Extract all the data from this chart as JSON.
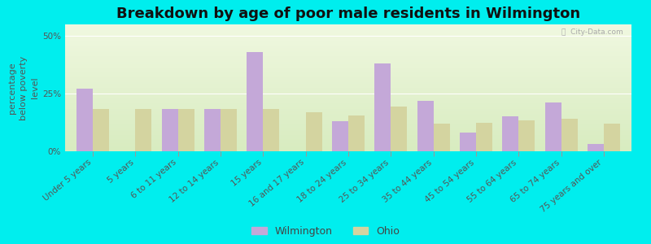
{
  "title": "Breakdown by age of poor male residents in Wilmington",
  "ylabel": "percentage\nbelow poverty\nlevel",
  "categories": [
    "Under 5 years",
    "5 years",
    "6 to 11 years",
    "12 to 14 years",
    "15 years",
    "16 and 17 years",
    "18 to 24 years",
    "25 to 34 years",
    "35 to 44 years",
    "45 to 54 years",
    "55 to 64 years",
    "65 to 74 years",
    "75 years and over"
  ],
  "wilmington_values": [
    27.0,
    0.0,
    18.5,
    18.5,
    43.0,
    0.0,
    13.0,
    38.0,
    22.0,
    8.0,
    15.0,
    21.0,
    3.0
  ],
  "ohio_values": [
    18.5,
    18.5,
    18.5,
    18.5,
    18.5,
    17.0,
    15.5,
    19.5,
    12.0,
    12.5,
    13.5,
    14.0,
    12.0
  ],
  "wilmington_color": "#c4a8d8",
  "ohio_color": "#d4d4a0",
  "background_color": "#00eeee",
  "grad_top": "#f0f8e0",
  "grad_bottom": "#d8ecc0",
  "ylim": [
    0,
    55
  ],
  "yticks": [
    0,
    25,
    50
  ],
  "ytick_labels": [
    "0%",
    "25%",
    "50%"
  ],
  "title_fontsize": 13,
  "axis_label_fontsize": 8,
  "tick_fontsize": 7.5,
  "legend_labels": [
    "Wilmington",
    "Ohio"
  ],
  "bar_width": 0.38,
  "watermark": "ⓘ  City-Data.com"
}
